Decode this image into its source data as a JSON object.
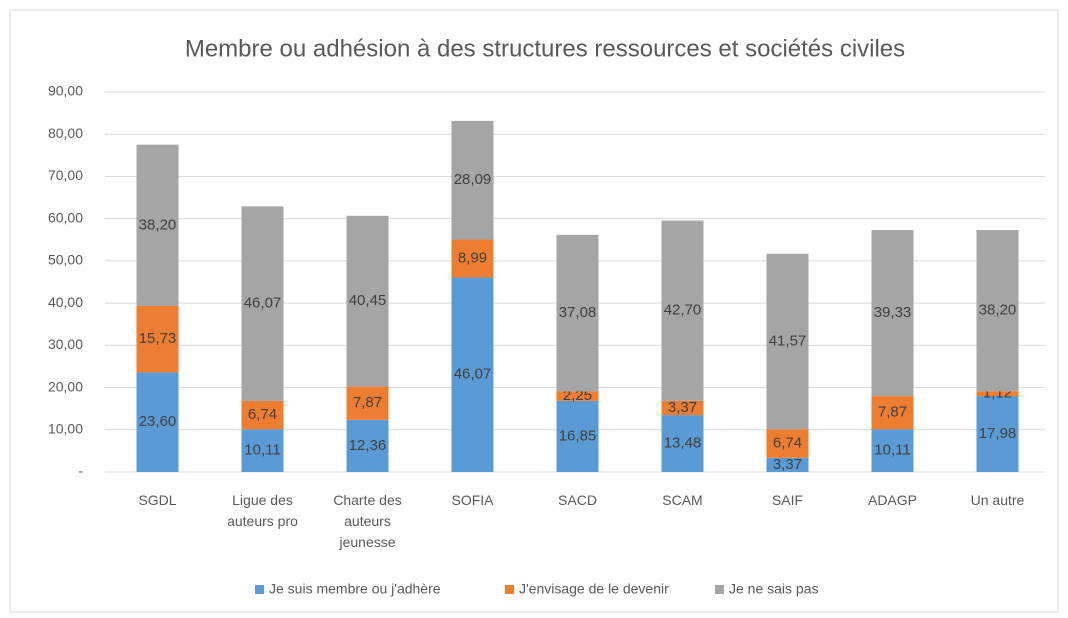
{
  "chart_data": {
    "type": "stacked_bar",
    "title": "Membre ou adhésion à des structures ressources et sociétés civiles",
    "categories": [
      "SGDL",
      "Ligue des auteurs pro",
      "Charte des auteurs jeunesse",
      "SOFIA",
      "SACD",
      "SCAM",
      "SAIF",
      "ADAGP",
      "Un autre"
    ],
    "series": [
      {
        "name": "Je suis membre ou j'adhère",
        "color": "#5b9bd5",
        "values": [
          23.6,
          10.11,
          12.36,
          46.07,
          16.85,
          13.48,
          3.37,
          10.11,
          17.98
        ],
        "value_labels": [
          "23,60",
          "10,11",
          "12,36",
          "46,07",
          "16,85",
          "13,48",
          "3,37",
          "10,11",
          "17,98"
        ]
      },
      {
        "name": "J'envisage de le devenir",
        "color": "#ed7d31",
        "values": [
          15.73,
          6.74,
          7.87,
          8.99,
          2.25,
          3.37,
          6.74,
          7.87,
          1.12
        ],
        "value_labels": [
          "15,73",
          "6,74",
          "7,87",
          "8,99",
          "2,25",
          "3,37",
          "6,74",
          "7,87",
          "1,12"
        ]
      },
      {
        "name": "Je ne sais pas",
        "color": "#a5a5a5",
        "values": [
          38.2,
          46.07,
          40.45,
          28.09,
          37.08,
          42.7,
          41.57,
          39.33,
          38.2
        ],
        "value_labels": [
          "38,20",
          "46,07",
          "40,45",
          "28,09",
          "37,08",
          "42,70",
          "41,57",
          "39,33",
          "38,20"
        ]
      }
    ],
    "ylim": [
      0,
      90
    ],
    "yticks": [
      {
        "value": 0,
        "label": "-"
      },
      {
        "value": 10,
        "label": "10,00"
      },
      {
        "value": 20,
        "label": "20,00"
      },
      {
        "value": 30,
        "label": "30,00"
      },
      {
        "value": 40,
        "label": "40,00"
      },
      {
        "value": 50,
        "label": "50,00"
      },
      {
        "value": 60,
        "label": "60,00"
      },
      {
        "value": 70,
        "label": "70,00"
      },
      {
        "value": 80,
        "label": "80,00"
      },
      {
        "value": 90,
        "label": "90,00"
      }
    ],
    "grid": true,
    "legend": "bottom"
  }
}
